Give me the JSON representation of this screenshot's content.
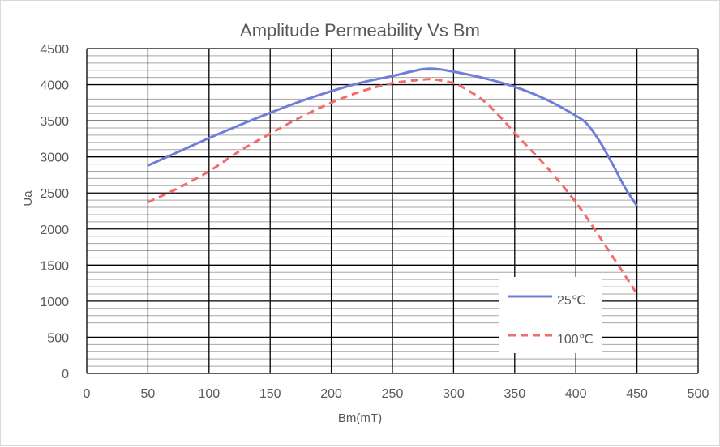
{
  "chart_data": {
    "type": "line",
    "title": "Amplitude Permeability Vs Bm",
    "xlabel": "Bm(mT)",
    "ylabel": "Ua",
    "xlim": [
      0,
      500
    ],
    "ylim": [
      0,
      4500
    ],
    "x_ticks": [
      "0",
      "50",
      "100",
      "150",
      "200",
      "250",
      "300",
      "350",
      "400",
      "450",
      "500"
    ],
    "y_ticks": [
      "0",
      "500",
      "1000",
      "1500",
      "2000",
      "2500",
      "3000",
      "3500",
      "4000",
      "4500"
    ],
    "grid": true,
    "legend_position": "bottom-right",
    "series": [
      {
        "name": "25℃",
        "color": "#6F7FD9",
        "style": "solid",
        "x": [
          50,
          75,
          100,
          125,
          150,
          175,
          200,
          225,
          250,
          265,
          275,
          285,
          300,
          325,
          350,
          375,
          400,
          410,
          420,
          430,
          440,
          450
        ],
        "y": [
          2880,
          3070,
          3260,
          3440,
          3610,
          3770,
          3910,
          4030,
          4120,
          4180,
          4215,
          4220,
          4180,
          4090,
          3970,
          3800,
          3570,
          3440,
          3200,
          2900,
          2580,
          2320
        ]
      },
      {
        "name": "100℃",
        "color": "#F36B6B",
        "style": "dashed",
        "x": [
          50,
          75,
          100,
          125,
          150,
          175,
          200,
          225,
          250,
          275,
          285,
          300,
          310,
          325,
          340,
          350,
          375,
          400,
          425,
          450
        ],
        "y": [
          2370,
          2570,
          2800,
          3080,
          3320,
          3550,
          3750,
          3910,
          4020,
          4070,
          4070,
          4020,
          3940,
          3770,
          3520,
          3330,
          2880,
          2370,
          1750,
          1100
        ]
      }
    ]
  }
}
